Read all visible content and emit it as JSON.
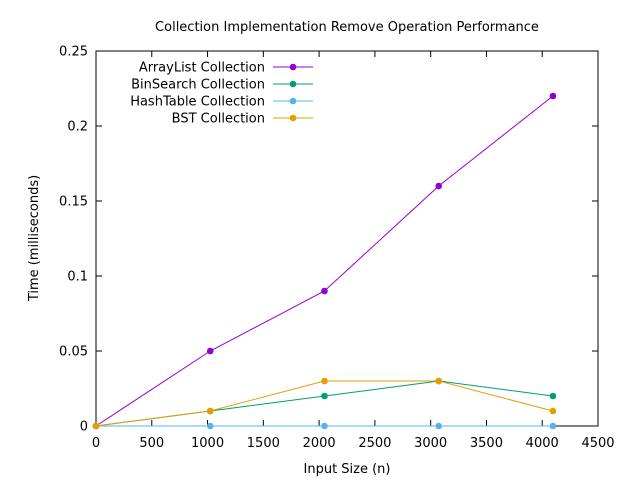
{
  "chart_data": {
    "type": "line",
    "title": "Collection Implementation Remove Operation Performance",
    "xlabel": "Input Size (n)",
    "ylabel": "Time (milliseconds)",
    "xlim": [
      0,
      4500
    ],
    "ylim": [
      0,
      0.25
    ],
    "xticks": [
      0,
      500,
      1000,
      1500,
      2000,
      2500,
      3000,
      3500,
      4000,
      4500
    ],
    "xtick_labels": [
      "0",
      "500",
      "1000",
      "1500",
      "2000",
      "2500",
      "3000",
      "3500",
      "4000",
      "4500"
    ],
    "yticks": [
      0,
      0.05,
      0.1,
      0.15,
      0.2,
      0.25
    ],
    "ytick_labels": [
      "0",
      "0.05",
      "0.1",
      "0.15",
      "0.2",
      "0.25"
    ],
    "grid": false,
    "legend_position": "top-left",
    "series": [
      {
        "name": "ArrayList Collection",
        "color": "#9400d3",
        "x": [
          0,
          1024,
          2048,
          3072,
          4096
        ],
        "y": [
          0,
          0.05,
          0.09,
          0.16,
          0.22
        ]
      },
      {
        "name": "BinSearch Collection",
        "color": "#009e73",
        "x": [
          0,
          1024,
          2048,
          3072,
          4096
        ],
        "y": [
          0,
          0.01,
          0.02,
          0.03,
          0.02
        ]
      },
      {
        "name": "HashTable Collection",
        "color": "#56b4e9",
        "x": [
          0,
          1024,
          2048,
          3072,
          4096
        ],
        "y": [
          0,
          0,
          0,
          0,
          0
        ]
      },
      {
        "name": "BST Collection",
        "color": "#e69f00",
        "x": [
          0,
          1024,
          2048,
          3072,
          4096
        ],
        "y": [
          0,
          0.01,
          0.03,
          0.03,
          0.01
        ]
      }
    ]
  }
}
